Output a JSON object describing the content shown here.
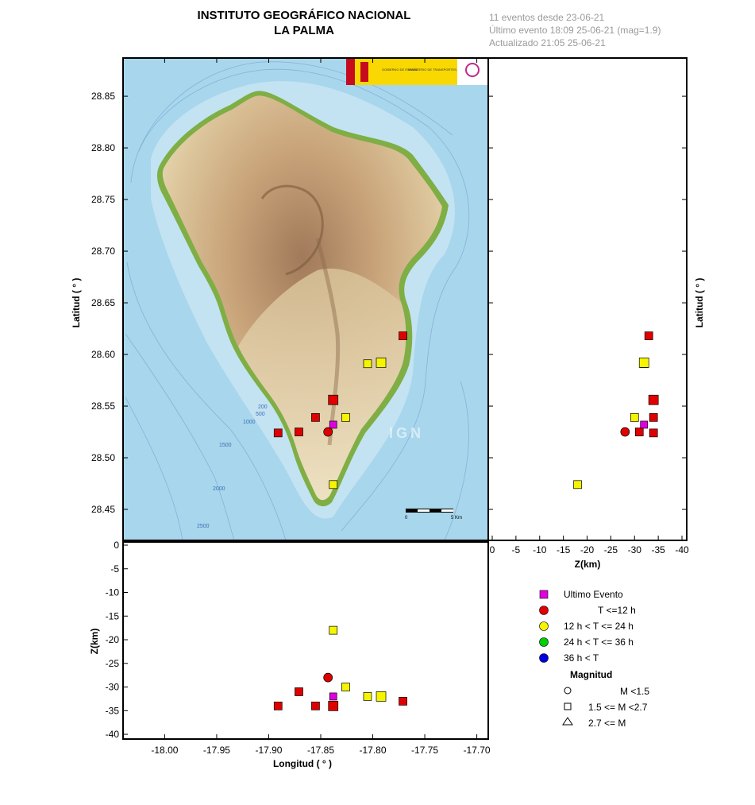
{
  "header": {
    "title_line1": "INSTITUTO GEOGRÁFICO NACIONAL",
    "title_line2": "LA PALMA",
    "info_line1": "11 eventos desde 23-06-21",
    "info_line2": "Último evento 18:09 25-06-21  (mag=1.9)",
    "info_line3": "Actualizado   21:05  25-06-21"
  },
  "map": {
    "logo_text1": "GOBIERNO DE ESPAÑA",
    "logo_text2": "MINISTERIO DE TRANSPORTES, MOVILIDAD Y AGENDA URBANA",
    "watermark": "IGN",
    "scale_start": "0",
    "scale_end": "5 Km",
    "depth_labels": [
      "200",
      "500",
      "1000",
      "1500",
      "2000",
      "2500"
    ],
    "colors": {
      "sea": "#a8d6ec",
      "sea_shallow": "#c3e3f2",
      "land_low": "#e8dcb8",
      "land_mid": "#c9a47a",
      "ridge": "#a07a5a",
      "coast": "#7fae45"
    }
  },
  "axes": {
    "latitude_label": "Latitud ( ° )",
    "longitude_label": "Longitud ( ° )",
    "depth_label": "Z(km)",
    "lat_ticks": [
      "28.85",
      "28.80",
      "28.75",
      "28.70",
      "28.65",
      "28.60",
      "28.55",
      "28.50",
      "28.45"
    ],
    "lon_ticks": [
      "-18.00",
      "-17.95",
      "-17.90",
      "-17.85",
      "-17.80",
      "-17.75",
      "-17.70"
    ],
    "z_ticks_bottom": [
      "0",
      "-5",
      "-10",
      "-15",
      "-20",
      "-25",
      "-30",
      "-35",
      "-40"
    ],
    "z_ticks_right": [
      "0",
      "-5",
      "-10",
      "-15",
      "-20",
      "-25",
      "-30",
      "-35",
      "-40"
    ]
  },
  "legend": {
    "last_event": "Ultimo Evento",
    "t12": "T <=12 h",
    "t24": "12 h  < T <= 24 h",
    "t36": "24 h  < T <= 36 h",
    "tmore": "36 h <  T",
    "mag_title": "Magnitud",
    "m1": "M <1.5",
    "m2": "1.5 <= M <2.7",
    "m3": "2.7 <= M",
    "colors": {
      "last": "#e000e0",
      "t12": "#e00000",
      "t24": "#f5f500",
      "t36": "#00d000",
      "tmore": "#0000e0"
    }
  },
  "chart_data": {
    "type": "scatter",
    "title": "INSTITUTO GEOGRÁFICO NACIONAL LA PALMA",
    "xlabel": "Longitud ( ° )",
    "ylabel": "Latitud ( ° )",
    "zlabel": "Z(km)",
    "xlim": [
      -18.04,
      -17.689
    ],
    "ylim": [
      28.42,
      28.887
    ],
    "zlim": [
      0,
      -41
    ],
    "series": [
      {
        "name": "Ultimo Evento",
        "points": [
          {
            "x": -17.838,
            "y": 28.532,
            "z": -32,
            "shape": "square",
            "size": "small"
          }
        ]
      },
      {
        "name": "T <=12 h",
        "points": [
          {
            "x": -17.891,
            "y": 28.524,
            "z": -34,
            "shape": "square",
            "size": "small"
          },
          {
            "x": -17.871,
            "y": 28.525,
            "z": -31,
            "shape": "square",
            "size": "small"
          },
          {
            "x": -17.855,
            "y": 28.539,
            "z": -34,
            "shape": "square",
            "size": "small"
          },
          {
            "x": -17.838,
            "y": 28.556,
            "z": -34,
            "shape": "square",
            "size": "large"
          },
          {
            "x": -17.771,
            "y": 28.618,
            "z": -33,
            "shape": "square",
            "size": "small"
          },
          {
            "x": -17.843,
            "y": 28.525,
            "z": -28,
            "shape": "circle",
            "size": "small"
          }
        ]
      },
      {
        "name": "12 h  < T <= 24 h",
        "points": [
          {
            "x": -17.838,
            "y": 28.474,
            "z": -18,
            "shape": "square",
            "size": "small"
          },
          {
            "x": -17.826,
            "y": 28.539,
            "z": -30,
            "shape": "square",
            "size": "small"
          },
          {
            "x": -17.805,
            "y": 28.591,
            "z": -32,
            "shape": "square",
            "size": "small"
          },
          {
            "x": -17.792,
            "y": 28.592,
            "z": -32,
            "shape": "square",
            "size": "large"
          }
        ]
      },
      {
        "name": "24 h  < T <= 36 h",
        "points": []
      },
      {
        "name": "36 h <  T",
        "points": []
      }
    ]
  }
}
